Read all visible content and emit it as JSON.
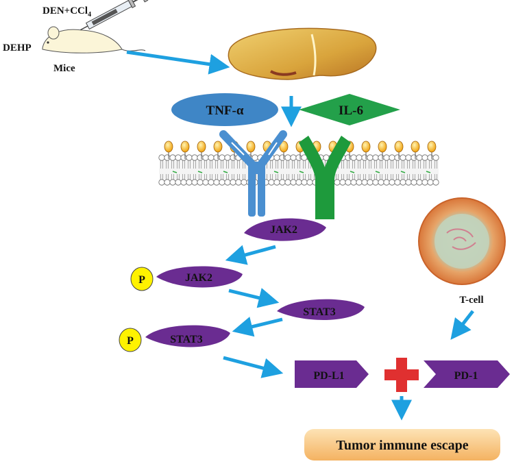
{
  "labels": {
    "treatment": "DEN+CCl",
    "treatment_subscript": "4",
    "dehp": "DEHP",
    "mice": "Mice",
    "tnf": "TNF-α",
    "il6": "IL-6",
    "jak2_top": "JAK2",
    "phospho_1": "P",
    "jak2_phos": "JAK2",
    "stat3_mid": "STAT3",
    "phospho_2": "P",
    "stat3_phos": "STAT3",
    "pdl1": "PD-L1",
    "pd1": "PD-1",
    "tcell": "T-cell",
    "outcome": "Tumor immune escape"
  },
  "colors": {
    "arrow": "#1ea0e0",
    "tnf": "#3f86c6",
    "il6": "#23a04a",
    "receptor_blue": "#4a8fd0",
    "receptor_green": "#1e9a3c",
    "purple": "#6a2c91",
    "phospho": "#fff200",
    "plus": "#e03030",
    "outcome_bg": "#f6c27a"
  }
}
